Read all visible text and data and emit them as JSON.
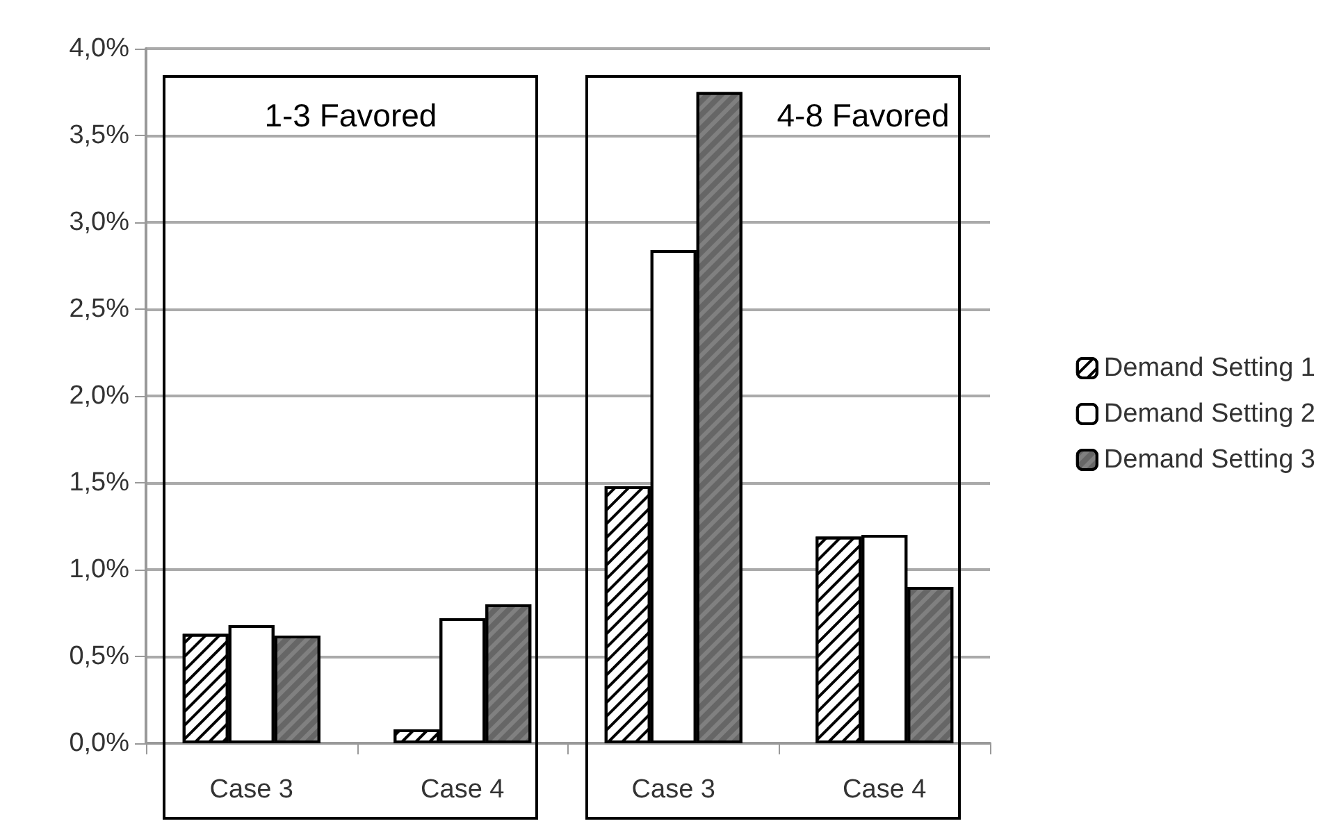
{
  "chart_data": {
    "type": "bar",
    "categories": [
      "Case 3",
      "Case 4",
      "Case 3",
      "Case 4"
    ],
    "series": [
      {
        "name": "Demand Setting 1",
        "color": "#ffffff",
        "values": [
          0.63,
          0.08,
          1.48,
          1.19
        ]
      },
      {
        "name": "Demand Setting 2",
        "color": "#ffffff",
        "values": [
          0.68,
          0.72,
          2.84,
          1.2
        ]
      },
      {
        "name": "Demand Setting 3",
        "color": "#808080",
        "values": [
          0.62,
          0.8,
          3.75,
          0.9
        ]
      }
    ],
    "ylim": [
      0,
      4
    ],
    "yticks": [
      {
        "value": 0,
        "label": "0,0%"
      },
      {
        "value": 0.5,
        "label": "0,5%"
      },
      {
        "value": 1,
        "label": "1,0%"
      },
      {
        "value": 1.5,
        "label": "1,5%"
      },
      {
        "value": 2,
        "label": "2,0%"
      },
      {
        "value": 2.5,
        "label": "2,5%"
      },
      {
        "value": 3,
        "label": "3,0%"
      },
      {
        "value": 3.5,
        "label": "3,5%"
      },
      {
        "value": 4,
        "label": "4,0%"
      }
    ],
    "annotations": [
      "1-3 Favored",
      "4-8 Favored"
    ],
    "grid": "y",
    "legend": "right"
  }
}
